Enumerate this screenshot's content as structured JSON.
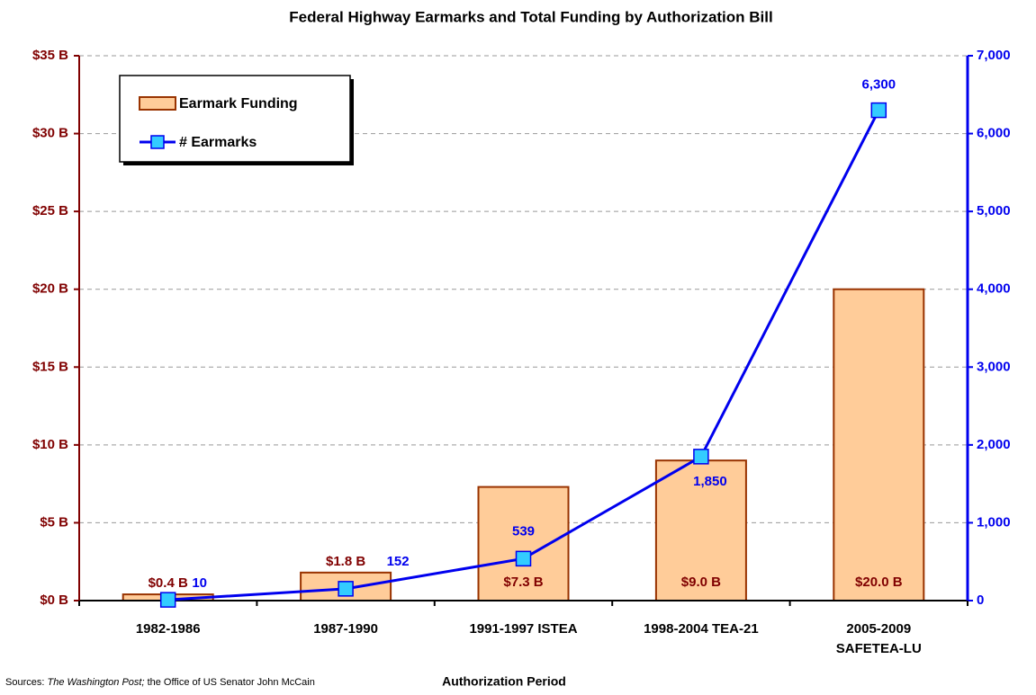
{
  "chart_data": {
    "type": "bar_line",
    "title": "Federal Highway Earmarks and Total Funding by Authorization Bill",
    "xlabel": "Authorization Period",
    "source": [
      "Sources:",
      "The Washington Post;",
      "the Office of US Senator John McCain"
    ],
    "categories": [
      "1982-1986",
      "1987-1990",
      "1991-1997 ISTEA",
      "1998-2004 TEA-21",
      "2005-2009\nSAFETEA-LU"
    ],
    "series": [
      {
        "name": "Earmark Funding",
        "type": "bar",
        "color": "#FFCC99",
        "edge": "#993300",
        "values": [
          0.4,
          1.8,
          7.3,
          9.0,
          20.0
        ],
        "value_labels": [
          "$0.4 B",
          "$1.8 B",
          "$7.3 B",
          "$9.0 B",
          "$20.0 B"
        ]
      },
      {
        "name": "# Earmarks",
        "type": "line",
        "axis": "y2",
        "color": "#0000EE",
        "marker": "#33CCFF",
        "values": [
          10,
          152,
          539,
          1850,
          6300
        ],
        "value_labels": [
          "10",
          "152",
          "539",
          "1,850",
          "6,300"
        ]
      }
    ],
    "ylim": [
      0,
      35
    ],
    "yticks": [
      {
        "value": 0,
        "label": "$0 B"
      },
      {
        "value": 5,
        "label": "$5 B"
      },
      {
        "value": 10,
        "label": "$10 B"
      },
      {
        "value": 15,
        "label": "$15 B"
      },
      {
        "value": 20,
        "label": "$20 B"
      },
      {
        "value": 25,
        "label": "$25 B"
      },
      {
        "value": 30,
        "label": "$30 B"
      },
      {
        "value": 35,
        "label": "$35 B"
      }
    ],
    "y2lim": [
      0,
      7000
    ],
    "y2ticks": [
      0,
      {
        "value": 1000,
        "label": "1,000"
      },
      {
        "value": 2000,
        "label": "2,000"
      },
      {
        "value": 3000,
        "label": "3,000"
      },
      {
        "value": 4000,
        "label": "4,000"
      },
      {
        "value": 5000,
        "label": "5,000"
      },
      {
        "value": 6000,
        "label": "6,000"
      },
      {
        "value": 7000,
        "label": "7,000"
      }
    ],
    "grid": true,
    "legend": "upper left"
  }
}
